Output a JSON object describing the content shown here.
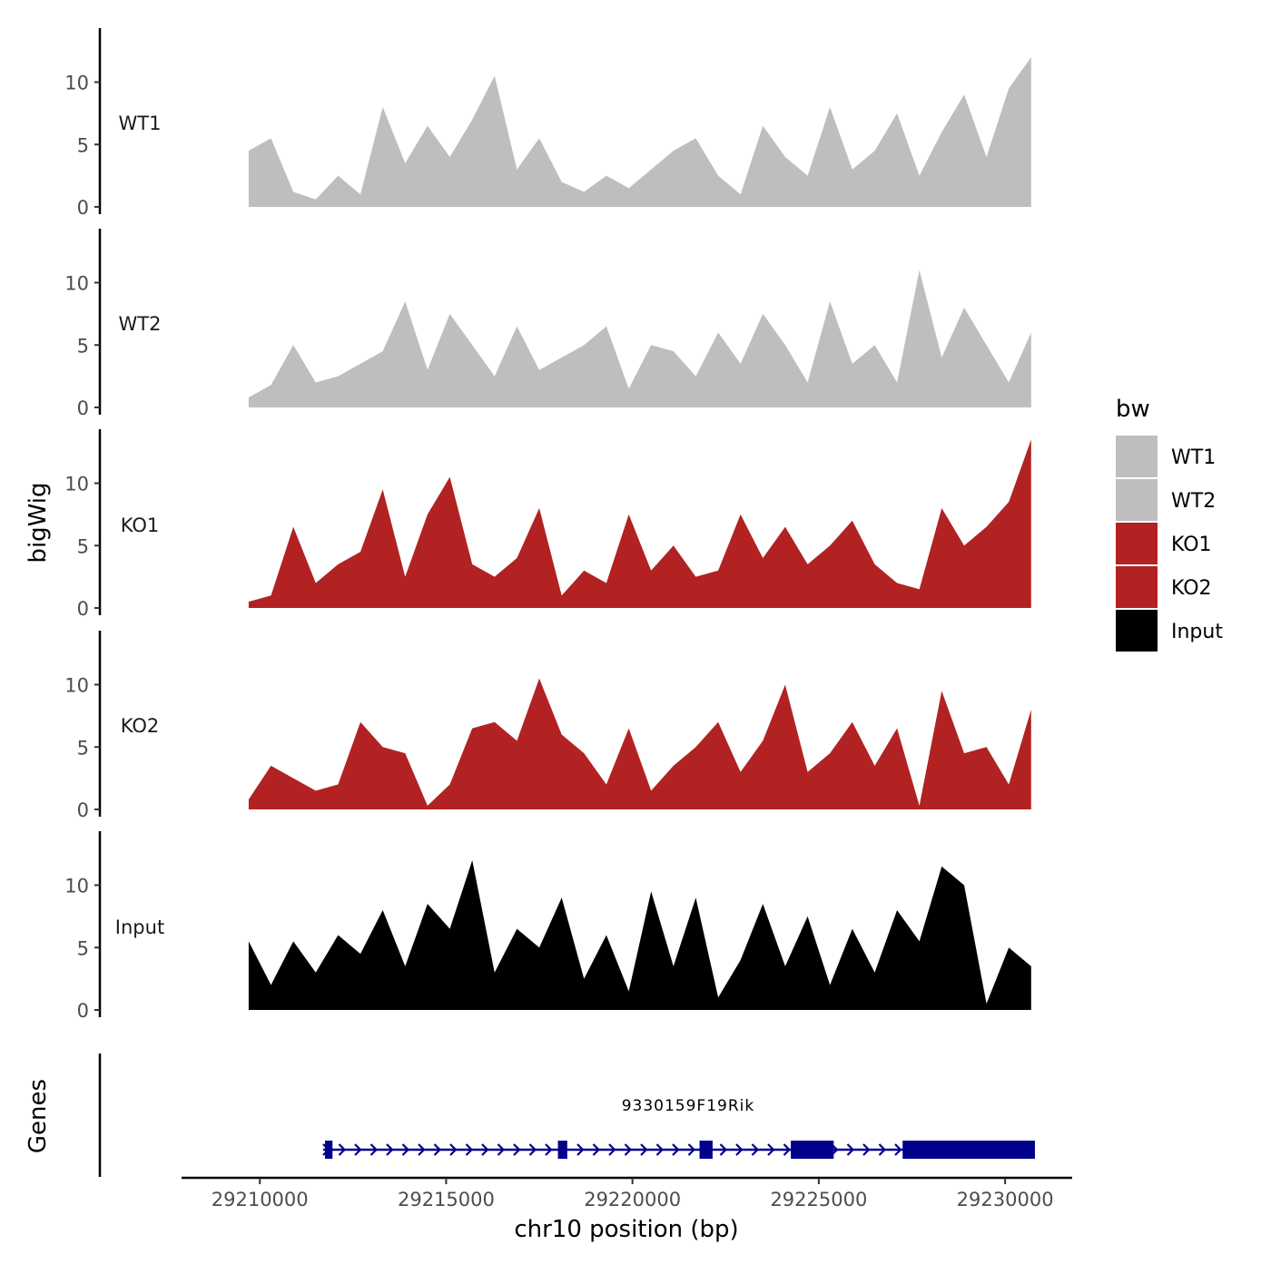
{
  "chart_data": {
    "type": "area",
    "title": "",
    "ylabel": "bigWig",
    "xlabel": "chr10 position (bp)",
    "genes_label": "Genes",
    "ylim": [
      0,
      14
    ],
    "y_ticks": [
      0,
      5,
      10
    ],
    "y_tick_labels": [
      "0",
      "5",
      "10"
    ],
    "xlim": [
      29207900,
      29231800
    ],
    "x_ticks": [
      29210000,
      29215000,
      29220000,
      29225000,
      29230000
    ],
    "x_tick_labels": [
      "29210000",
      "29215000",
      "29220000",
      "29225000",
      "29230000"
    ],
    "legend": {
      "title": "bw",
      "position": "right",
      "entries": [
        {
          "label": "WT1",
          "color": "#BEBEBE"
        },
        {
          "label": "WT2",
          "color": "#BEBEBE"
        },
        {
          "label": "KO1",
          "color": "#B22222"
        },
        {
          "label": "KO2",
          "color": "#B22222"
        },
        {
          "label": "Input",
          "color": "#000000"
        }
      ]
    },
    "x": [
      29209700,
      29210300,
      29210900,
      29211500,
      29212100,
      29212700,
      29213300,
      29213900,
      29214500,
      29215100,
      29215700,
      29216300,
      29216900,
      29217500,
      29218100,
      29218700,
      29219300,
      29219900,
      29220500,
      29221100,
      29221700,
      29222300,
      29222900,
      29223500,
      29224100,
      29224700,
      29225300,
      29225900,
      29226500,
      29227100,
      29227700,
      29228300,
      29228900,
      29229500,
      29230100,
      29230700
    ],
    "series": [
      {
        "name": "WT1",
        "color": "#BEBEBE",
        "values": [
          4.5,
          5.5,
          1.2,
          0.6,
          2.5,
          1.0,
          8.0,
          3.5,
          6.5,
          4.0,
          7.0,
          10.5,
          3.0,
          5.5,
          2.0,
          1.2,
          2.5,
          1.5,
          3.0,
          4.5,
          5.5,
          2.5,
          1.0,
          6.5,
          4.0,
          2.5,
          8.0,
          3.0,
          4.5,
          7.5,
          2.5,
          6.0,
          9.0,
          4.0,
          9.5,
          12.0
        ]
      },
      {
        "name": "WT2",
        "color": "#BEBEBE",
        "values": [
          0.8,
          1.8,
          5.0,
          2.0,
          2.5,
          3.5,
          4.5,
          8.5,
          3.0,
          7.5,
          5.0,
          2.5,
          6.5,
          3.0,
          4.0,
          5.0,
          6.5,
          1.5,
          5.0,
          4.5,
          2.5,
          6.0,
          3.5,
          7.5,
          5.0,
          2.0,
          8.5,
          3.5,
          5.0,
          2.0,
          11.0,
          4.0,
          8.0,
          5.0,
          2.0,
          6.0
        ]
      },
      {
        "name": "KO1",
        "color": "#B22222",
        "values": [
          0.5,
          1.0,
          6.5,
          2.0,
          3.5,
          4.5,
          9.5,
          2.5,
          7.5,
          10.5,
          3.5,
          2.5,
          4.0,
          8.0,
          1.0,
          3.0,
          2.0,
          7.5,
          3.0,
          5.0,
          2.5,
          3.0,
          7.5,
          4.0,
          6.5,
          3.5,
          5.0,
          7.0,
          3.5,
          2.0,
          1.5,
          8.0,
          5.0,
          6.5,
          8.5,
          13.5
        ]
      },
      {
        "name": "KO2",
        "color": "#B22222",
        "values": [
          0.8,
          3.5,
          2.5,
          1.5,
          2.0,
          7.0,
          5.0,
          4.5,
          0.3,
          2.0,
          6.5,
          7.0,
          5.5,
          10.5,
          6.0,
          4.5,
          2.0,
          6.5,
          1.5,
          3.5,
          5.0,
          7.0,
          3.0,
          5.5,
          10.0,
          3.0,
          4.5,
          7.0,
          3.5,
          6.5,
          0.3,
          9.5,
          4.5,
          5.0,
          2.0,
          8.0
        ]
      },
      {
        "name": "Input",
        "color": "#000000",
        "values": [
          5.5,
          2.0,
          5.5,
          3.0,
          6.0,
          4.5,
          8.0,
          3.5,
          8.5,
          6.5,
          12.0,
          3.0,
          6.5,
          5.0,
          9.0,
          2.5,
          6.0,
          1.5,
          9.5,
          3.5,
          9.0,
          1.0,
          4.0,
          8.5,
          3.5,
          7.5,
          2.0,
          6.5,
          3.0,
          8.0,
          5.5,
          11.5,
          10.0,
          0.5,
          5.0,
          3.5
        ]
      }
    ],
    "genes": {
      "gene_name": "9330159F19Rik",
      "strand": "+",
      "line_color": "#00008B",
      "start": 29211700,
      "end": 29230800,
      "exons": [
        {
          "start": 29211750,
          "end": 29211950
        },
        {
          "start": 29218000,
          "end": 29218250
        },
        {
          "start": 29221800,
          "end": 29222150
        },
        {
          "start": 29224250,
          "end": 29225400
        },
        {
          "start": 29227250,
          "end": 29230800
        }
      ]
    }
  }
}
